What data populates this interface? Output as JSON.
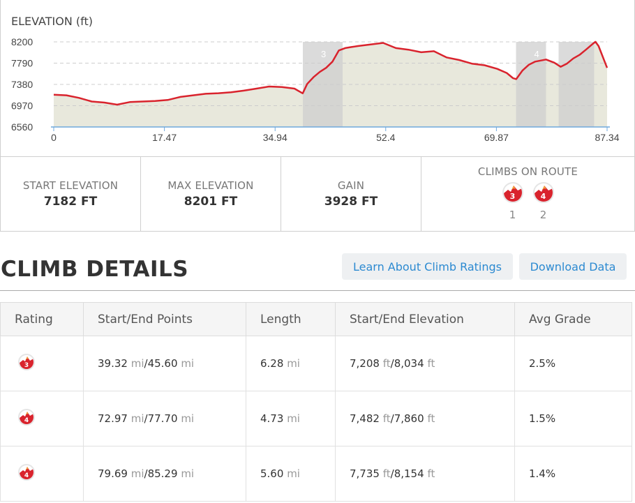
{
  "chart_data": {
    "type": "area",
    "title": "ELEVATION (ft)",
    "xlabel": "",
    "ylabel": "ELEVATION (ft)",
    "xlim": [
      0,
      87.34
    ],
    "ylim": [
      6560,
      8200
    ],
    "x_ticks": [
      "0",
      "17.47",
      "34.94",
      "52.4",
      "69.87",
      "87.34"
    ],
    "y_ticks": [
      "8200",
      "7790",
      "7380",
      "6970",
      "6560"
    ],
    "grid": true,
    "climb_regions": [
      {
        "label": "3",
        "start": 39.32,
        "end": 45.6
      },
      {
        "label": "4",
        "start": 72.97,
        "end": 77.7
      },
      {
        "label": "",
        "start": 79.69,
        "end": 85.29
      }
    ],
    "series": [
      {
        "x": [
          0,
          2,
          4,
          6,
          8,
          10,
          12,
          14,
          16,
          18,
          20,
          22,
          24,
          26,
          28,
          30,
          32,
          34,
          36,
          38,
          39.3,
          40,
          41,
          42,
          43,
          44,
          45,
          46,
          47,
          48,
          50,
          52,
          54,
          56,
          58,
          60,
          62,
          64,
          66,
          68,
          70,
          71.5,
          72.5,
          73,
          74,
          75,
          76,
          77.7,
          79,
          80,
          81,
          82,
          83,
          84,
          85,
          85.5,
          86,
          87.34
        ],
        "values": [
          7182,
          7170,
          7120,
          7050,
          7030,
          6990,
          7040,
          7050,
          7060,
          7080,
          7140,
          7170,
          7200,
          7210,
          7230,
          7260,
          7300,
          7340,
          7330,
          7300,
          7208,
          7390,
          7520,
          7620,
          7700,
          7820,
          8034,
          8080,
          8100,
          8120,
          8150,
          8180,
          8080,
          8050,
          8000,
          8020,
          7900,
          7850,
          7780,
          7750,
          7680,
          7600,
          7500,
          7482,
          7650,
          7760,
          7820,
          7860,
          7800,
          7720,
          7780,
          7880,
          7950,
          8050,
          8154,
          8201,
          8120,
          7700
        ]
      }
    ]
  },
  "stats": {
    "start_label": "START ELEVATION",
    "start_value": "7182 FT",
    "max_label": "MAX ELEVATION",
    "max_value": "8201 FT",
    "gain_label": "GAIN",
    "gain_value": "3928 FT",
    "climbs_label": "CLIMBS ON ROUTE",
    "climbs": [
      {
        "rating": "3",
        "number": "1"
      },
      {
        "rating": "4",
        "number": "2"
      }
    ]
  },
  "details": {
    "title": "CLIMB DETAILS",
    "learn_button": "Learn About Climb Ratings",
    "download_button": "Download Data",
    "columns": [
      "Rating",
      "Start/End Points",
      "Length",
      "Start/End Elevation",
      "Avg Grade"
    ],
    "rows": [
      {
        "rating": "3",
        "start_pt": "39.32",
        "end_pt": "45.60",
        "length": "6.28",
        "start_elev": "7,208",
        "end_elev": "8,034",
        "grade": "2.5%"
      },
      {
        "rating": "4",
        "start_pt": "72.97",
        "end_pt": "77.70",
        "length": "4.73",
        "start_elev": "7,482",
        "end_elev": "7,860",
        "grade": "1.5%"
      },
      {
        "rating": "4",
        "start_pt": "79.69",
        "end_pt": "85.29",
        "length": "5.60",
        "start_elev": "7,735",
        "end_elev": "8,154",
        "grade": "1.4%"
      }
    ],
    "unit_mi": "mi",
    "unit_ft": "ft"
  },
  "colors": {
    "line": "#d9232d",
    "fill": "#e8e8dc",
    "climb_shade": "#cfcfcf",
    "grid": "#cccccc",
    "axis": "#6fa8dc",
    "link": "#2c8ad1"
  }
}
